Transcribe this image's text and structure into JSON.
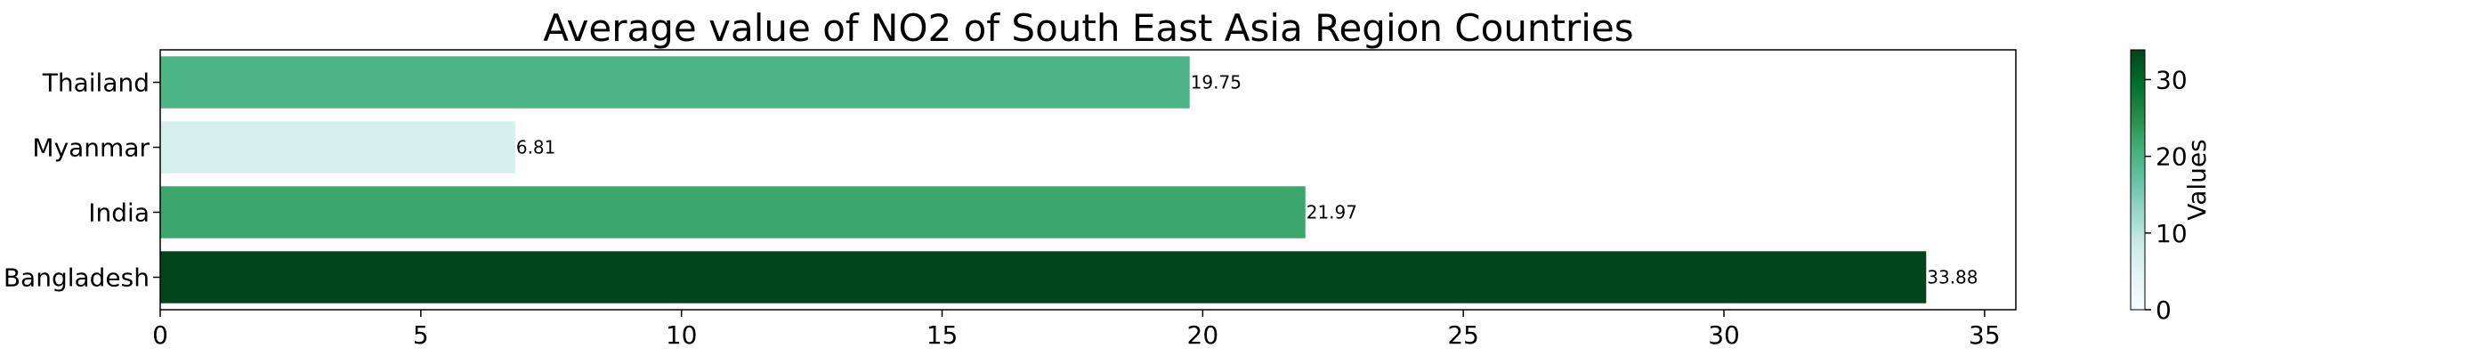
{
  "chart_data": {
    "type": "bar",
    "orientation": "horizontal",
    "title": "Average value of NO2 of South East Asia Region Countries",
    "xlabel": "",
    "ylabel": "",
    "categories": [
      "Bangladesh",
      "India",
      "Myanmar",
      "Thailand"
    ],
    "values": [
      33.88,
      21.97,
      6.81,
      19.75
    ],
    "data_labels": [
      "33.88",
      "21.97",
      "6.81",
      "19.75"
    ],
    "xlim": [
      0,
      35.6
    ],
    "x_ticks": [
      0,
      5,
      10,
      15,
      20,
      25,
      30,
      35
    ],
    "grid": false,
    "colorbar": {
      "label": "Values",
      "colormap": "BuGn",
      "range": [
        0,
        33.88
      ],
      "ticks": [
        0,
        10,
        20,
        30
      ],
      "colors": [
        "#f7fcfd",
        "#e5f5f9",
        "#ccece6",
        "#99d8c9",
        "#66c2a4",
        "#41ae76",
        "#238b45",
        "#006d2c",
        "#00441b"
      ]
    }
  }
}
